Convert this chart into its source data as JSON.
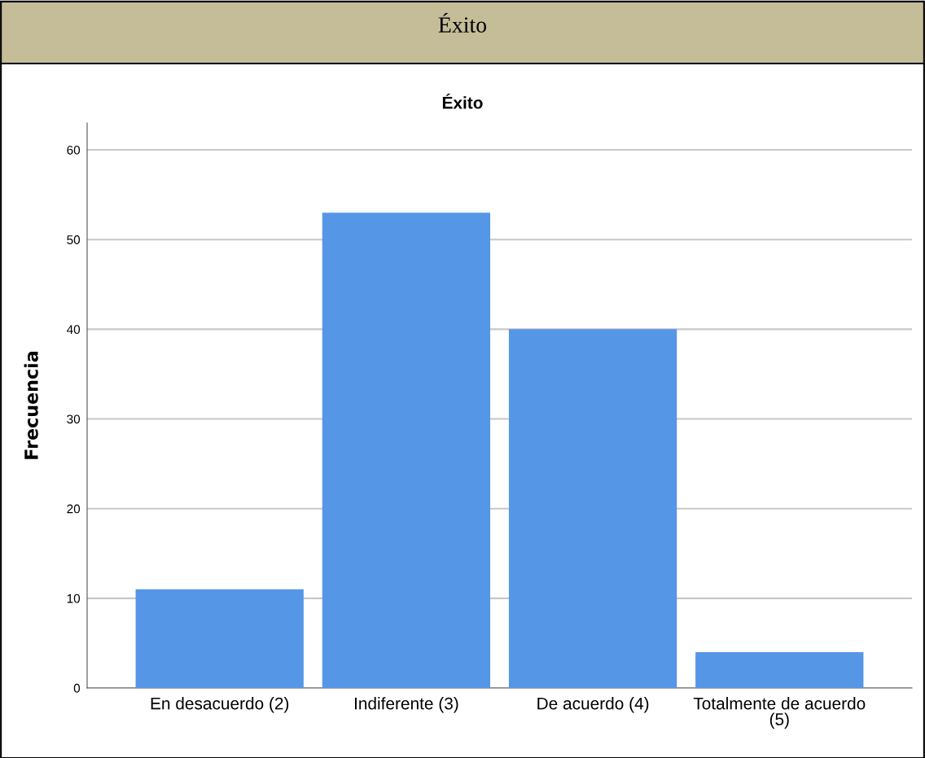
{
  "chart_data": {
    "type": "bar",
    "title": "Éxito",
    "subtitle": "Éxito",
    "ylabel": "Frecuencia",
    "categories": [
      "En desacuerdo (2)",
      "Indiferente (3)",
      "De acuerdo (4)",
      "Totalmente de acuerdo (5)"
    ],
    "values": [
      11,
      53,
      40,
      4
    ],
    "color": "#5596e6",
    "ylim": [
      0,
      63
    ],
    "yticks": [
      0,
      10,
      20,
      30,
      40,
      50,
      60
    ],
    "grid": "y"
  }
}
